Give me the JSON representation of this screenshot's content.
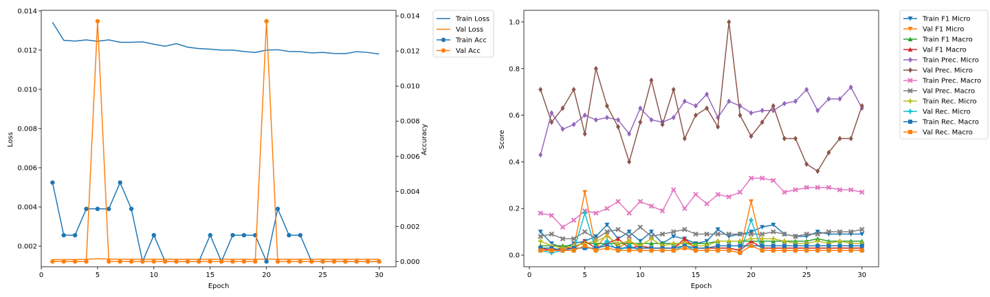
{
  "charts": {
    "left": {
      "xlabel": "Epoch",
      "ylabel_left": "Loss",
      "ylabel_right": "Accuracy",
      "legend": [
        "Train Loss",
        "Val Loss",
        "Train Acc",
        "Val Acc"
      ]
    },
    "right": {
      "xlabel": "Epoch",
      "ylabel": "Score",
      "legend": [
        "Train F1 Micro",
        "Val F1 Micro",
        "Train F1 Macro",
        "Val F1 Macro",
        "Train Prec. Micro",
        "Val Prec. Micro",
        "Train Prec. Macro",
        "Val Prec. Macro",
        "Train Rec. Micro",
        "Val Rec. Micro",
        "Train Rec. Macro",
        "Val Rec. Macro"
      ]
    }
  },
  "chart_data": [
    {
      "type": "line",
      "x": [
        1,
        2,
        3,
        4,
        5,
        6,
        7,
        8,
        9,
        10,
        11,
        12,
        13,
        14,
        15,
        16,
        17,
        18,
        19,
        20,
        21,
        22,
        23,
        24,
        25,
        26,
        27,
        28,
        29,
        30
      ],
      "xlabel": "Epoch",
      "ylabel": "Loss",
      "y2label": "Accuracy",
      "xlim": [
        0,
        31.5
      ],
      "ylim": [
        0.00095,
        0.01403
      ],
      "y2lim": [
        -0.0003,
        0.01432
      ],
      "xticks": [
        0,
        5,
        10,
        15,
        20,
        25,
        30
      ],
      "yticks": [
        0.002,
        0.004,
        0.006,
        0.008,
        0.01,
        0.012,
        0.014
      ],
      "y2ticks": [
        0.0,
        0.002,
        0.004,
        0.006,
        0.008,
        0.01,
        0.012,
        0.014
      ],
      "legend_position": "outside right",
      "series": [
        {
          "name": "Train Loss",
          "axis": "left",
          "color": "#1f77b4",
          "marker": "none",
          "values": [
            0.01342,
            0.0125,
            0.01246,
            0.01252,
            0.01245,
            0.01252,
            0.0124,
            0.0124,
            0.01242,
            0.0123,
            0.0122,
            0.01233,
            0.01215,
            0.01208,
            0.01205,
            0.012,
            0.012,
            0.01193,
            0.01188,
            0.012,
            0.01202,
            0.01193,
            0.01192,
            0.01186,
            0.01188,
            0.01183,
            0.01182,
            0.01192,
            0.01188,
            0.0118
          ]
        },
        {
          "name": "Val Loss",
          "axis": "left",
          "color": "#ff7f0e",
          "marker": "none",
          "values": [
            0.00132,
            0.00132,
            0.00132,
            0.00133,
            0.00136,
            0.00134,
            0.00133,
            0.00133,
            0.00133,
            0.00133,
            0.00133,
            0.00133,
            0.00133,
            0.00133,
            0.00133,
            0.00133,
            0.00133,
            0.00133,
            0.00133,
            0.00134,
            0.00133,
            0.00133,
            0.00133,
            0.00133,
            0.00133,
            0.00133,
            0.00133,
            0.00133,
            0.00133,
            0.00133
          ]
        },
        {
          "name": "Train Acc",
          "axis": "right",
          "color": "#1f77b4",
          "marker": "circle",
          "values": [
            0.0045,
            0.0015,
            0.0015,
            0.003,
            0.003,
            0.003,
            0.0045,
            0.003,
            0.0,
            0.0015,
            0.0,
            0.0,
            0.0,
            0.0,
            0.0015,
            0.0,
            0.0015,
            0.0015,
            0.0015,
            0.0,
            0.003,
            0.0015,
            0.0015,
            0.0,
            0.0,
            0.0,
            0.0,
            0.0,
            0.0,
            0.0
          ]
        },
        {
          "name": "Val Acc",
          "axis": "right",
          "color": "#ff7f0e",
          "marker": "circle",
          "values": [
            0.0,
            0.0,
            0.0,
            0.0,
            0.0137,
            0.0,
            0.0,
            0.0,
            0.0,
            0.0,
            0.0,
            0.0,
            0.0,
            0.0,
            0.0,
            0.0,
            0.0,
            0.0,
            0.0,
            0.0137,
            0.0,
            0.0,
            0.0,
            0.0,
            0.0,
            0.0,
            0.0,
            0.0,
            0.0,
            0.0
          ]
        }
      ]
    },
    {
      "type": "line",
      "x": [
        1,
        2,
        3,
        4,
        5,
        6,
        7,
        8,
        9,
        10,
        11,
        12,
        13,
        14,
        15,
        16,
        17,
        18,
        19,
        20,
        21,
        22,
        23,
        24,
        25,
        26,
        27,
        28,
        29,
        30
      ],
      "xlabel": "Epoch",
      "ylabel": "Score",
      "xlim": [
        -0.5,
        31.5
      ],
      "ylim": [
        -0.05,
        1.05
      ],
      "xticks": [
        0,
        5,
        10,
        15,
        20,
        25,
        30
      ],
      "yticks": [
        0.0,
        0.2,
        0.4,
        0.6,
        0.8,
        1.0
      ],
      "legend_position": "outside right",
      "series": [
        {
          "name": "Train F1 Micro",
          "color": "#1f77b4",
          "marker": "triangle-down",
          "values": [
            0.1,
            0.05,
            0.03,
            0.05,
            0.06,
            0.08,
            0.13,
            0.07,
            0.1,
            0.06,
            0.1,
            0.05,
            0.08,
            0.07,
            0.05,
            0.06,
            0.11,
            0.08,
            0.09,
            0.1,
            0.12,
            0.13,
            0.09,
            0.08,
            0.08,
            0.1,
            0.09,
            0.09,
            0.09,
            0.09
          ]
        },
        {
          "name": "Val F1 Micro",
          "color": "#ff7f0e",
          "marker": "triangle-down",
          "values": [
            0.03,
            0.02,
            0.03,
            0.03,
            0.27,
            0.03,
            0.09,
            0.03,
            0.06,
            0.03,
            0.03,
            0.03,
            0.03,
            0.06,
            0.03,
            0.03,
            0.03,
            0.03,
            0.02,
            0.23,
            0.03,
            0.03,
            0.03,
            0.03,
            0.03,
            0.03,
            0.03,
            0.03,
            0.03,
            0.03
          ]
        },
        {
          "name": "Train F1 Macro",
          "color": "#2ca02c",
          "marker": "triangle-up",
          "values": [
            0.04,
            0.04,
            0.04,
            0.04,
            0.05,
            0.05,
            0.05,
            0.05,
            0.05,
            0.05,
            0.05,
            0.05,
            0.05,
            0.05,
            0.05,
            0.05,
            0.06,
            0.06,
            0.06,
            0.06,
            0.06,
            0.06,
            0.06,
            0.06,
            0.06,
            0.07,
            0.06,
            0.06,
            0.06,
            0.06
          ]
        },
        {
          "name": "Val F1 Macro",
          "color": "#d62728",
          "marker": "triangle-up",
          "values": [
            0.03,
            0.02,
            0.03,
            0.03,
            0.06,
            0.03,
            0.05,
            0.07,
            0.03,
            0.04,
            0.03,
            0.03,
            0.03,
            0.07,
            0.03,
            0.03,
            0.03,
            0.03,
            0.02,
            0.06,
            0.03,
            0.03,
            0.03,
            0.03,
            0.03,
            0.03,
            0.03,
            0.03,
            0.03,
            0.03
          ]
        },
        {
          "name": "Train Prec. Micro",
          "color": "#9467bd",
          "marker": "diamond",
          "values": [
            0.43,
            0.61,
            0.54,
            0.56,
            0.6,
            0.58,
            0.59,
            0.58,
            0.52,
            0.63,
            0.58,
            0.57,
            0.59,
            0.66,
            0.64,
            0.69,
            0.59,
            0.66,
            0.64,
            0.61,
            0.62,
            0.62,
            0.65,
            0.66,
            0.71,
            0.62,
            0.67,
            0.67,
            0.72,
            0.63
          ]
        },
        {
          "name": "Val Prec. Micro",
          "color": "#8c564b",
          "marker": "diamond",
          "values": [
            0.71,
            0.57,
            0.63,
            0.71,
            0.52,
            0.8,
            0.64,
            0.55,
            0.4,
            0.57,
            0.75,
            0.56,
            0.71,
            0.5,
            0.6,
            0.63,
            0.55,
            1.0,
            0.6,
            0.51,
            0.57,
            0.64,
            0.5,
            0.5,
            0.39,
            0.36,
            0.44,
            0.5,
            0.5,
            0.64
          ]
        },
        {
          "name": "Train Prec. Macro",
          "color": "#e377c2",
          "marker": "x",
          "values": [
            0.18,
            0.17,
            0.12,
            0.15,
            0.19,
            0.18,
            0.2,
            0.23,
            0.18,
            0.23,
            0.21,
            0.19,
            0.28,
            0.2,
            0.26,
            0.22,
            0.26,
            0.25,
            0.27,
            0.33,
            0.33,
            0.32,
            0.27,
            0.28,
            0.29,
            0.29,
            0.29,
            0.28,
            0.28,
            0.27
          ]
        },
        {
          "name": "Val Prec. Macro",
          "color": "#7f7f7f",
          "marker": "x",
          "values": [
            0.08,
            0.09,
            0.07,
            0.07,
            0.1,
            0.07,
            0.1,
            0.11,
            0.08,
            0.12,
            0.08,
            0.09,
            0.1,
            0.11,
            0.09,
            0.09,
            0.09,
            0.09,
            0.09,
            0.09,
            0.09,
            0.1,
            0.09,
            0.08,
            0.09,
            0.09,
            0.1,
            0.1,
            0.1,
            0.11
          ]
        },
        {
          "name": "Train Rec. Micro",
          "color": "#bcbd22",
          "marker": "plus",
          "values": [
            0.06,
            0.04,
            0.03,
            0.04,
            0.05,
            0.06,
            0.08,
            0.05,
            0.06,
            0.04,
            0.07,
            0.04,
            0.05,
            0.05,
            0.04,
            0.04,
            0.06,
            0.06,
            0.06,
            0.07,
            0.07,
            0.07,
            0.06,
            0.05,
            0.05,
            0.06,
            0.05,
            0.06,
            0.05,
            0.05
          ]
        },
        {
          "name": "Val Rec. Micro",
          "color": "#17becf",
          "marker": "plus",
          "values": [
            0.02,
            0.01,
            0.02,
            0.02,
            0.18,
            0.02,
            0.06,
            0.02,
            0.04,
            0.02,
            0.02,
            0.02,
            0.02,
            0.04,
            0.02,
            0.02,
            0.02,
            0.02,
            0.01,
            0.15,
            0.02,
            0.02,
            0.02,
            0.02,
            0.02,
            0.02,
            0.02,
            0.02,
            0.02,
            0.02
          ]
        },
        {
          "name": "Train Rec. Macro",
          "color": "#1f77b4",
          "marker": "square",
          "values": [
            0.03,
            0.03,
            0.02,
            0.03,
            0.03,
            0.03,
            0.04,
            0.03,
            0.03,
            0.03,
            0.03,
            0.03,
            0.03,
            0.04,
            0.03,
            0.03,
            0.04,
            0.04,
            0.04,
            0.04,
            0.04,
            0.04,
            0.04,
            0.04,
            0.04,
            0.04,
            0.04,
            0.04,
            0.04,
            0.04
          ]
        },
        {
          "name": "Val Rec. Macro",
          "color": "#ff7f0e",
          "marker": "square",
          "values": [
            0.02,
            0.02,
            0.02,
            0.02,
            0.04,
            0.02,
            0.03,
            0.02,
            0.02,
            0.02,
            0.02,
            0.02,
            0.02,
            0.03,
            0.02,
            0.02,
            0.02,
            0.02,
            0.01,
            0.04,
            0.02,
            0.02,
            0.02,
            0.02,
            0.02,
            0.02,
            0.02,
            0.02,
            0.02,
            0.02
          ]
        }
      ]
    }
  ]
}
